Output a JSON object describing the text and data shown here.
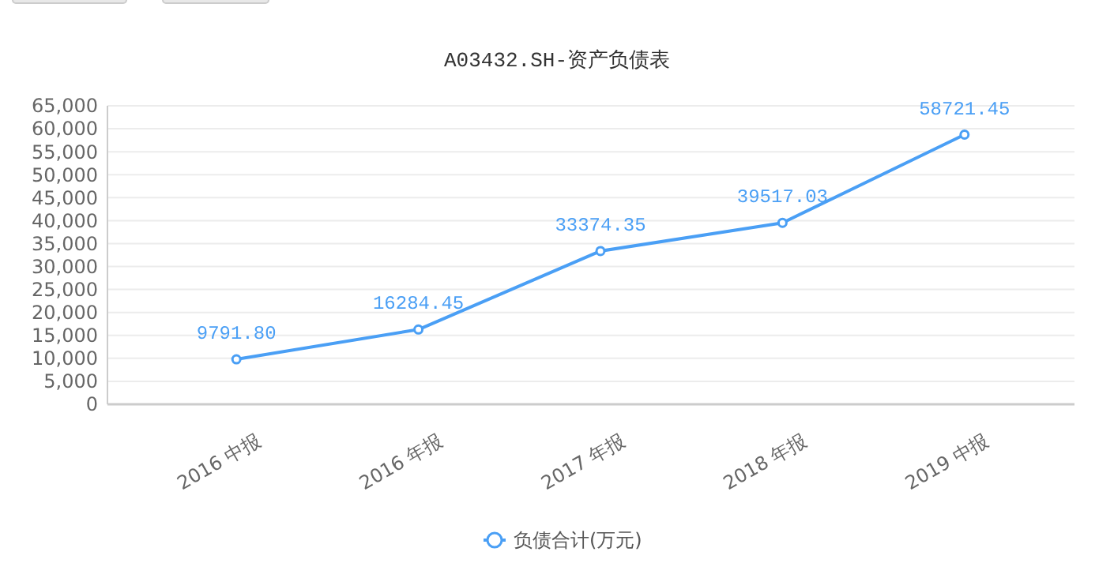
{
  "chart_data": {
    "type": "line",
    "title": "A03432.SH-资产负债表",
    "categories": [
      "2016 中报",
      "2016 年报",
      "2017 年报",
      "2018 年报",
      "2019 中报"
    ],
    "series": [
      {
        "name": "负债合计(万元)",
        "color": "#4a9ff5",
        "values": [
          9791.8,
          16284.45,
          33374.35,
          39517.03,
          58721.45
        ]
      }
    ],
    "value_labels": [
      "9791.80",
      "16284.45",
      "33374.35",
      "39517.03",
      "58721.45"
    ],
    "ylim": [
      0,
      65000
    ],
    "yticks": [
      {
        "value": 0,
        "label": "0"
      },
      {
        "value": 5000,
        "label": "5,000"
      },
      {
        "value": 10000,
        "label": "10,000"
      },
      {
        "value": 15000,
        "label": "15,000"
      },
      {
        "value": 20000,
        "label": "20,000"
      },
      {
        "value": 25000,
        "label": "25,000"
      },
      {
        "value": 30000,
        "label": "30,000"
      },
      {
        "value": 35000,
        "label": "35,000"
      },
      {
        "value": 40000,
        "label": "40,000"
      },
      {
        "value": 45000,
        "label": "45,000"
      },
      {
        "value": 50000,
        "label": "50,000"
      },
      {
        "value": 55000,
        "label": "55,000"
      },
      {
        "value": 60000,
        "label": "60,000"
      },
      {
        "value": 65000,
        "label": "65,000"
      }
    ],
    "grid": "y",
    "legend": "bottom",
    "marker": "circle",
    "line_style": "solid"
  }
}
